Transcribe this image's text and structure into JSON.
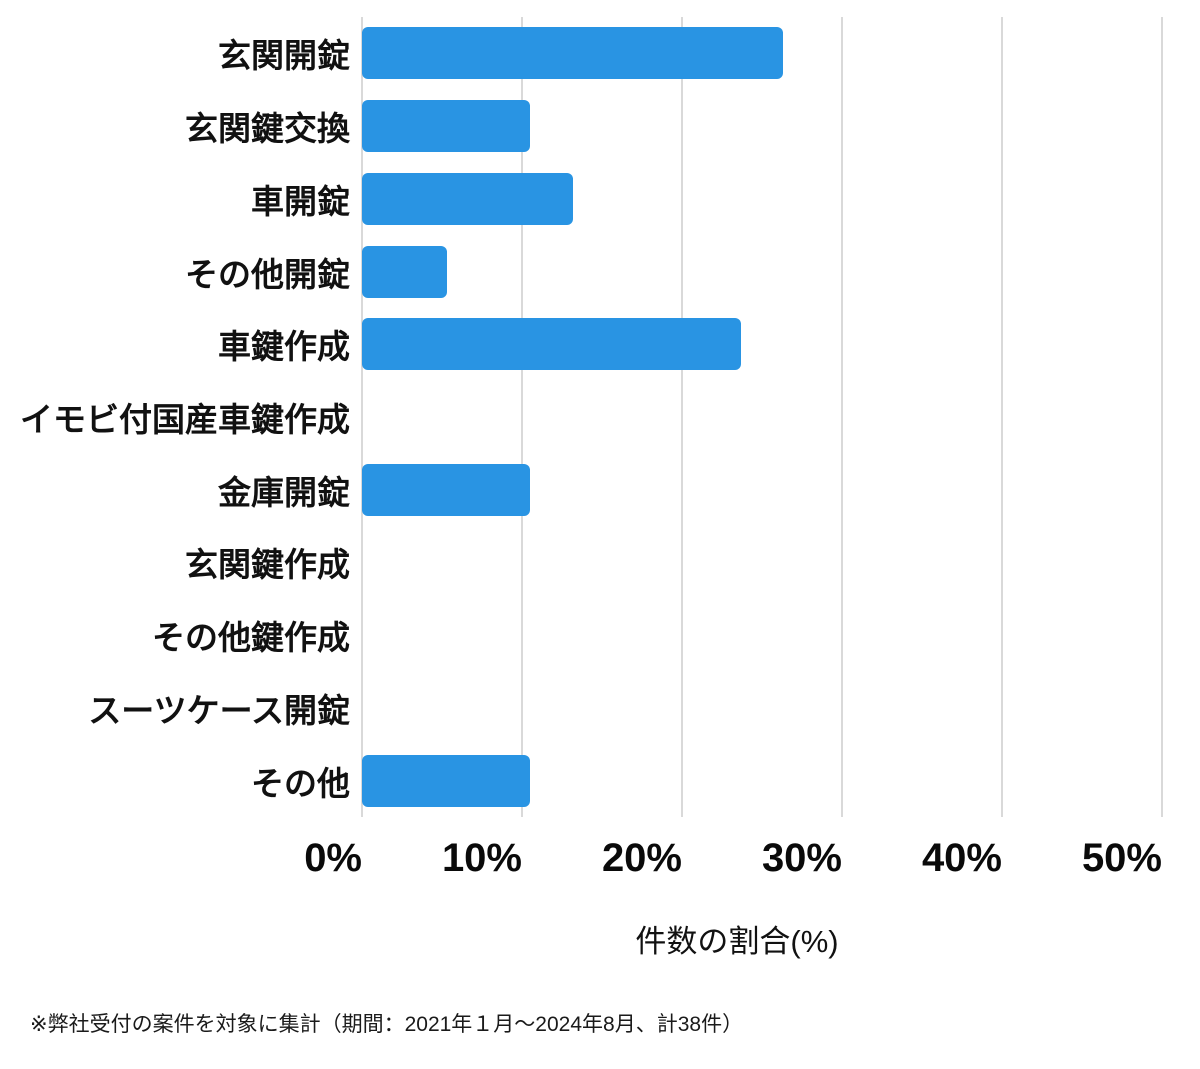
{
  "chart_data": {
    "type": "bar",
    "orientation": "horizontal",
    "title": "",
    "categories": [
      "玄関開錠",
      "玄関鍵交換",
      "車開錠",
      "その他開錠",
      "車鍵作成",
      "イモビ付国産車鍵作成",
      "金庫開錠",
      "玄関鍵作成",
      "その他鍵作成",
      "スーツケース開錠",
      "その他"
    ],
    "values": [
      26.3,
      10.5,
      13.2,
      5.3,
      23.7,
      0,
      10.5,
      0,
      0,
      0,
      10.5
    ],
    "x_tick_labels": [
      "0%",
      "10%",
      "20%",
      "30%",
      "40%",
      "50%"
    ],
    "x_tick_values": [
      0,
      10,
      20,
      30,
      40,
      50
    ],
    "xlabel": "件数の割合(%)",
    "ylabel": "",
    "xlim": [
      0,
      50
    ],
    "grid": "vertical",
    "legend": "none",
    "bar_color": "#2994E3",
    "gridline_color": "#d9d9d9"
  },
  "footnote": "※弊社受付の案件を対象に集計（期間：2021年１月～2024年8月、計38件）"
}
